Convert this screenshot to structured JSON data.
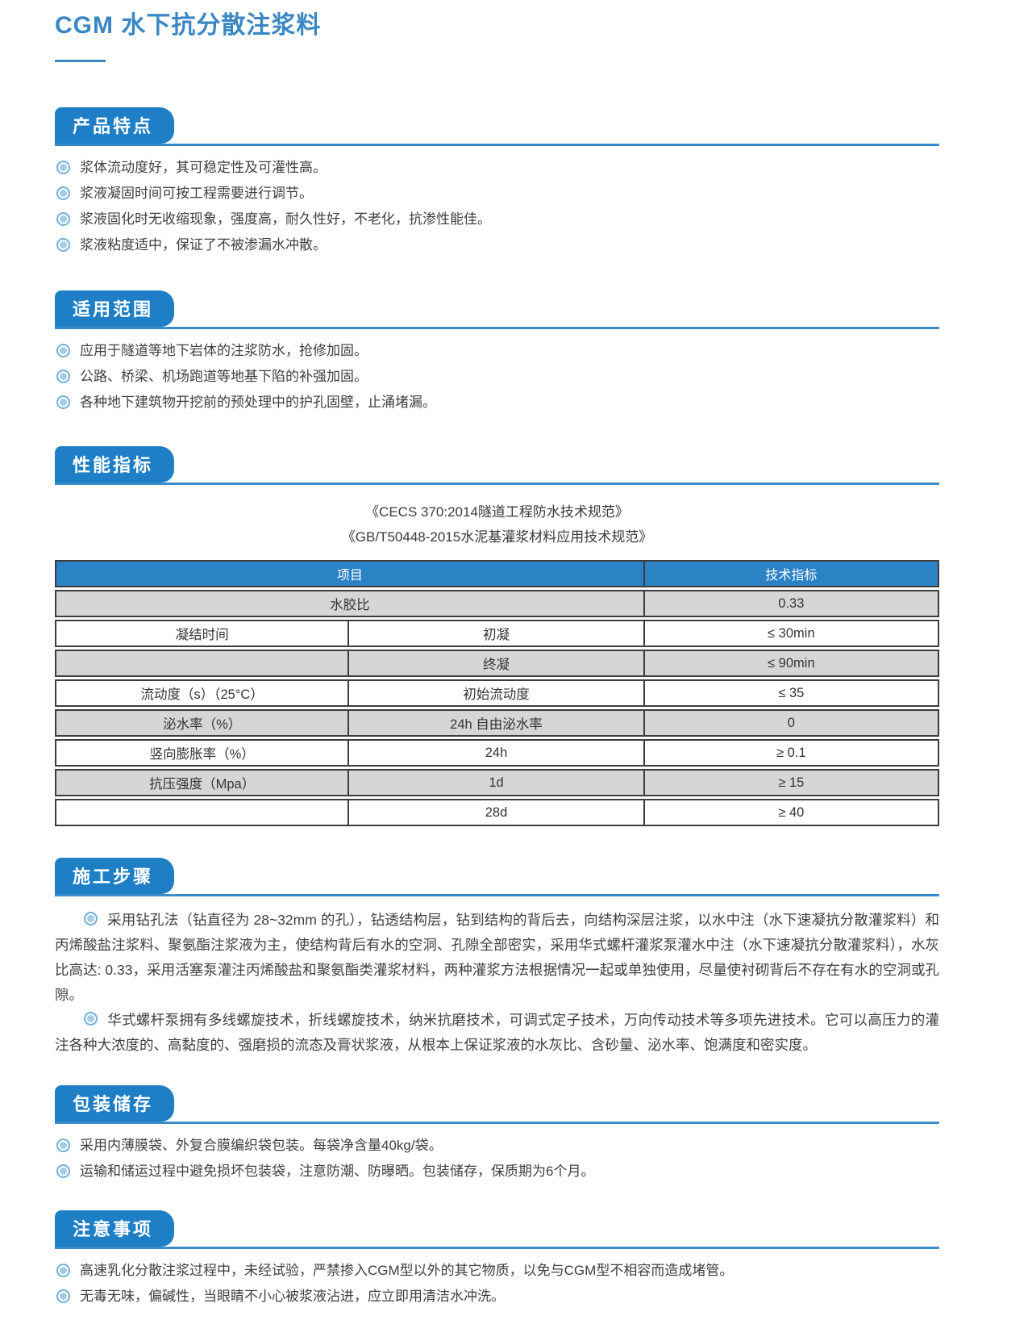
{
  "page": {
    "title": "CGM 水下抗分散注浆料"
  },
  "colors": {
    "accent_blue": "#1e7fc6",
    "rule_blue": "#3a8ccb",
    "table_header_blue": "#2b82c4",
    "row_gray": "#d6d6d8",
    "title_blue": "#3a87c6"
  },
  "sections": {
    "features": {
      "heading": "产品特点",
      "items": [
        "浆体流动度好，其可稳定性及可灌性高。",
        "浆液凝固时间可按工程需要进行调节。",
        "浆液固化时无收缩现象，强度高，耐久性好，不老化，抗渗性能佳。",
        "浆液粘度适中，保证了不被渗漏水冲散。"
      ]
    },
    "scope": {
      "heading": "适用范围",
      "items": [
        "应用于隧道等地下岩体的注浆防水，抢修加固。",
        "公路、桥梁、机场跑道等地基下陷的补强加固。",
        "各种地下建筑物开挖前的预处理中的护孔固壁，止涌堵漏。"
      ]
    },
    "performance": {
      "heading": "性能指标",
      "standards": [
        "《CECS 370:2014隧道工程防水技术规范》",
        "《GB/T50448-2015水泥基灌浆材料应用技术规范》"
      ],
      "table": {
        "header": {
          "item": "项目",
          "indicator": "技术指标"
        },
        "rows": [
          {
            "cols": [
              "水胶比",
              "0.33"
            ],
            "span2": true,
            "shade": "gray"
          },
          {
            "cols": [
              "凝结时间",
              "初凝",
              "≤ 30min"
            ],
            "shade": "white"
          },
          {
            "cols": [
              "",
              "终凝",
              "≤ 90min"
            ],
            "shade": "gray"
          },
          {
            "cols": [
              "流动度（s）（25°C）",
              "初始流动度",
              "≤ 35"
            ],
            "shade": "white"
          },
          {
            "cols": [
              "泌水率（%）",
              "24h 自由泌水率",
              "0"
            ],
            "shade": "gray"
          },
          {
            "cols": [
              "竖向膨胀率（%）",
              "24h",
              "≥ 0.1"
            ],
            "shade": "white"
          },
          {
            "cols": [
              "抗压强度（Mpa）",
              "1d",
              "≥ 15"
            ],
            "shade": "gray"
          },
          {
            "cols": [
              "",
              "28d",
              "≥ 40"
            ],
            "shade": "white"
          }
        ]
      }
    },
    "construction": {
      "heading": "施工步骤",
      "paragraphs": [
        "采用钻孔法（钻直径为 28~32mm 的孔），钻透结构层，钻到结构的背后去，向结构深层注浆，以水中注（水下速凝抗分散灌浆料）和丙烯酸盐注浆料、聚氨酯注浆液为主，使结构背后有水的空洞、孔隙全部密实，采用华式螺杆灌浆泵灌水中注（水下速凝抗分散灌浆料），水灰比高达: 0.33，采用活塞泵灌注丙烯酸盐和聚氨酯类灌浆材料，两种灌浆方法根据情况一起或单独使用，尽量使衬砌背后不存在有水的空洞或孔隙。",
        "华式螺杆泵拥有多线螺旋技术，折线螺旋技术，纳米抗磨技术，可调式定子技术，万向传动技术等多项先进技术。它可以高压力的灌注各种大浓度的、高黏度的、强磨损的流态及膏状浆液，从根本上保证浆液的水灰比、含砂量、泌水率、饱满度和密实度。"
      ]
    },
    "packaging": {
      "heading": "包装储存",
      "items": [
        "采用内薄膜袋、外复合膜编织袋包装。每袋净含量40kg/袋。",
        "运输和储运过程中避免损坏包装袋，注意防潮、防曝晒。包装储存，保质期为6个月。"
      ]
    },
    "notes": {
      "heading": "注意事项",
      "items": [
        "高速乳化分散注浆过程中，未经试验，严禁掺入CGM型以外的其它物质，以免与CGM型不相容而造成堵管。",
        "无毒无味，偏碱性，当眼睛不小心被浆液沾进，应立即用清洁水冲洗。"
      ]
    }
  }
}
